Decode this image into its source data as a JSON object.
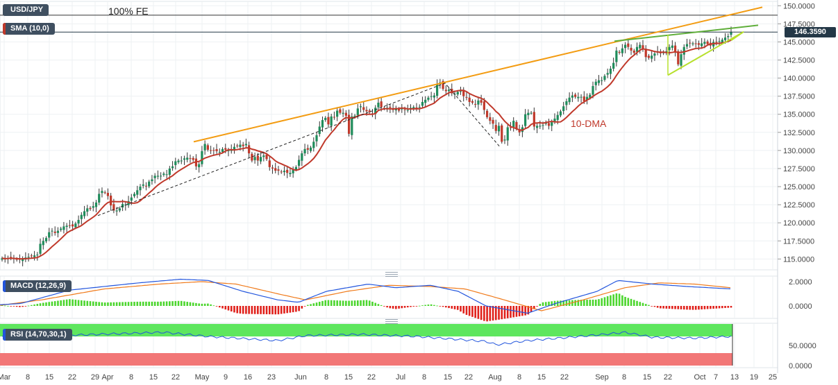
{
  "labels": {
    "pair": "USD/JPY",
    "sma": "SMA (10,0)",
    "macd": "MACD (12,26,9)",
    "rsi": "RSI (14,70,30,1)",
    "fe": "100% FE",
    "dma": "10-DMA",
    "current_price": "146.3590"
  },
  "colors": {
    "candle_up": "#1f8c5b",
    "candle_down": "#c0392b",
    "sma_line": "#c0392b",
    "resistance_line": "#f39c12",
    "wedge_upper": "#5fae3a",
    "wedge_lower": "#b7e02d",
    "trend_dashed": "#222222",
    "macd_line": "#2255dd",
    "signal_line": "#f07a1a",
    "hist_pos": "#4cd62e",
    "hist_neg": "#e0201a",
    "rsi_line": "#2255dd",
    "rsi_overbought": "#5ee65e",
    "rsi_oversold": "#f27777"
  },
  "chart_data": [
    {
      "type": "candlestick",
      "name": "USD/JPY daily",
      "x_axis": {
        "tick_labels": [
          "Mar",
          "8",
          "15",
          "22",
          "29",
          "Apr",
          "8",
          "15",
          "22",
          "May",
          "9",
          "16",
          "23",
          "Jun",
          "8",
          "15",
          "22",
          "Jul",
          "8",
          "15",
          "22",
          "Aug",
          "8",
          "15",
          "22",
          "Sep",
          "8",
          "15",
          "22",
          "Oct",
          "7",
          "13",
          "19",
          "25"
        ]
      },
      "y_axis": {
        "ylim": [
          113.5,
          150.6
        ],
        "tick_labels": [
          "150.0000",
          "147.5000",
          "145.0000",
          "142.5000",
          "140.0000",
          "137.5000",
          "135.0000",
          "132.5000",
          "130.0000",
          "127.5000",
          "125.0000",
          "122.5000",
          "120.0000",
          "117.5000",
          "115.0000"
        ],
        "tick_values": [
          150,
          147.5,
          145,
          142.5,
          140,
          137.5,
          135,
          132.5,
          130,
          127.5,
          125,
          122.5,
          120,
          117.5,
          115
        ]
      },
      "closes": [
        115.1,
        115.0,
        115.1,
        115.2,
        115.0,
        114.9,
        114.9,
        115.0,
        115.2,
        115.3,
        115.4,
        115.5,
        115.6,
        117.1,
        117.5,
        117.9,
        118.7,
        118.9,
        118.6,
        118.9,
        119.2,
        119.5,
        119.6,
        119.6,
        119.5,
        119.9,
        120.4,
        121.1,
        121.6,
        122.0,
        121.9,
        122.3,
        122.8,
        124.0,
        124.4,
        124.2,
        123.7,
        122.4,
        121.7,
        121.7,
        122.0,
        122.6,
        122.5,
        123.0,
        123.5,
        124.0,
        124.5,
        125.0,
        125.3,
        125.1,
        125.7,
        126.0,
        126.5,
        126.5,
        126.5,
        126.8,
        126.7,
        127.5,
        127.8,
        128.5,
        128.6,
        128.6,
        128.9,
        129.0,
        128.9,
        128.7,
        127.8,
        128.1,
        129.9,
        130.9,
        130.1,
        130.0,
        130.0,
        129.9,
        129.8,
        130.2,
        130.1,
        130.0,
        130.1,
        130.5,
        130.6,
        130.8,
        130.6,
        130.9,
        129.6,
        128.6,
        129.1,
        128.6,
        129.1,
        129.3,
        128.8,
        127.7,
        127.5,
        127.2,
        127.2,
        127.0,
        127.2,
        126.9,
        126.9,
        127.3,
        127.7,
        128.7,
        129.6,
        130.2,
        130.1,
        130.4,
        131.2,
        132.1,
        133.3,
        134.2,
        134.5,
        133.6,
        134.7,
        134.6,
        135.5,
        135.2,
        135.2,
        134.8,
        132.3,
        134.7,
        134.8,
        135.8,
        136.1,
        135.6,
        135.4,
        135.3,
        135.1,
        135.9,
        136.6,
        136.0,
        135.8,
        135.9,
        135.9,
        135.6,
        135.7,
        135.5,
        135.8,
        135.6,
        135.6,
        135.9,
        136.0,
        135.9,
        136.0,
        136.7,
        137.0,
        137.3,
        137.5,
        137.6,
        139.1,
        139.4,
        138.5,
        138.2,
        138.4,
        137.9,
        137.8,
        138.1,
        138.2,
        137.5,
        137.3,
        136.7,
        136.6,
        136.4,
        136.9,
        136.6,
        135.6,
        134.6,
        134.1,
        133.7,
        132.7,
        133.4,
        131.2,
        131.5,
        133.2,
        133.1,
        134.1,
        133.0,
        132.5,
        133.2,
        135.0,
        135.2,
        135.2,
        133.3,
        133.4,
        133.4,
        133.5,
        133.9,
        133.4,
        133.9,
        134.4,
        134.9,
        135.4,
        136.1,
        136.8,
        137.3,
        137.6,
        137.4,
        137.4,
        137.4,
        136.8,
        137.4,
        137.7,
        138.9,
        139.5,
        139.7,
        139.7,
        140.3,
        140.7,
        141.3,
        142.1,
        143.8,
        143.5,
        144.1,
        144.6,
        144.3,
        143.8,
        143.5,
        144.3,
        144.6,
        144.0,
        142.9,
        142.8,
        143.1,
        143.4,
        143.7,
        143.5,
        143.6,
        143.7,
        144.3,
        144.5,
        143.6,
        141.9,
        143.3,
        144.3,
        144.7,
        144.8,
        144.8,
        144.7,
        144.6,
        144.8,
        145.0,
        144.7,
        144.5,
        145.0,
        144.9,
        145.1,
        145.3,
        145.6,
        145.8,
        146.4
      ],
      "ten_dma_note": "10-DMA",
      "annotations": [
        "100% FE",
        "10-DMA"
      ],
      "current_price": 146.359,
      "fe_level": 148.7
    },
    {
      "type": "macd",
      "name": "MACD (12,26,9)",
      "y_axis": {
        "tick_labels": [
          "2.0000",
          "0.0000"
        ],
        "tick_values": [
          2,
          0
        ]
      }
    },
    {
      "type": "rsi",
      "name": "RSI (14,70,30,1)",
      "y_axis": {
        "tick_labels": [
          "50.0000",
          "0.0000"
        ],
        "tick_values": [
          50,
          0
        ]
      }
    }
  ]
}
